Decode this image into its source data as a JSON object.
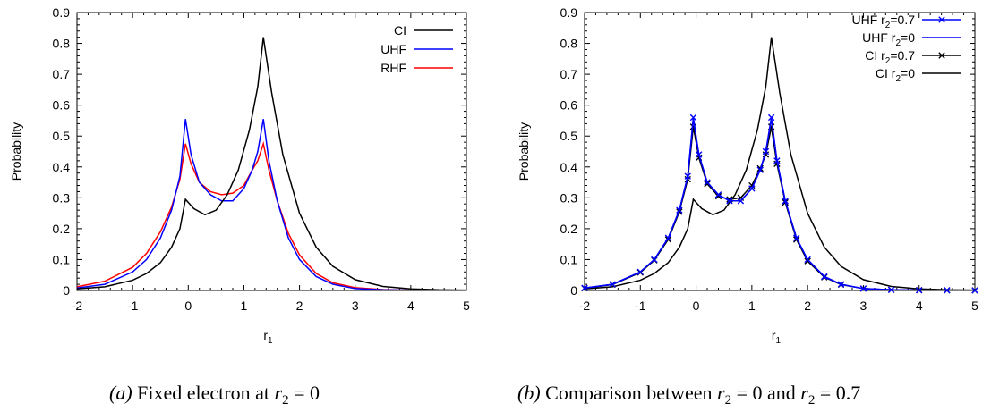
{
  "chart_data": [
    {
      "type": "line",
      "caption": {
        "tag": "(a)",
        "text": "Fixed electron at",
        "math": "r",
        "sub": "2",
        "eq": " = 0"
      },
      "ylabel": "Probability",
      "xlabel_base": "r",
      "xlabel_sub": "1",
      "xlim": [
        -2,
        5
      ],
      "ylim": [
        0,
        0.9
      ],
      "x_ticks": [
        "-2",
        "-1",
        "0",
        "1",
        "2",
        "3",
        "4",
        "5"
      ],
      "y_ticks": [
        "0",
        "0.1",
        "0.2",
        "0.3",
        "0.4",
        "0.5",
        "0.6",
        "0.7",
        "0.8",
        "0.9"
      ],
      "legend_position": "top-right",
      "series": [
        {
          "name": "CI",
          "color": "#000000",
          "marker": "none",
          "x": [
            -2,
            -1.5,
            -1,
            -0.75,
            -0.5,
            -0.3,
            -0.15,
            -0.05,
            0.1,
            0.3,
            0.5,
            0.7,
            0.9,
            1.1,
            1.25,
            1.35,
            1.5,
            1.7,
            2.0,
            2.3,
            2.6,
            3.0,
            3.5,
            4.0,
            4.5,
            5.0
          ],
          "y": [
            0.005,
            0.012,
            0.033,
            0.055,
            0.09,
            0.14,
            0.2,
            0.295,
            0.265,
            0.245,
            0.26,
            0.31,
            0.39,
            0.52,
            0.66,
            0.82,
            0.64,
            0.44,
            0.25,
            0.14,
            0.078,
            0.035,
            0.013,
            0.005,
            0.002,
            0.001
          ]
        },
        {
          "name": "UHF",
          "color": "#0000ff",
          "marker": "none",
          "x": [
            -2,
            -1.5,
            -1,
            -0.75,
            -0.5,
            -0.3,
            -0.15,
            -0.05,
            0.05,
            0.2,
            0.4,
            0.6,
            0.8,
            1.0,
            1.15,
            1.25,
            1.35,
            1.45,
            1.6,
            1.8,
            2.0,
            2.3,
            2.6,
            3.0,
            3.5,
            4.0,
            4.5,
            5.0
          ],
          "y": [
            0.008,
            0.02,
            0.06,
            0.1,
            0.17,
            0.26,
            0.37,
            0.555,
            0.44,
            0.35,
            0.31,
            0.29,
            0.29,
            0.33,
            0.39,
            0.45,
            0.555,
            0.42,
            0.29,
            0.17,
            0.1,
            0.045,
            0.02,
            0.006,
            0.002,
            0.001,
            0.0005,
            0.0002
          ]
        },
        {
          "name": "RHF",
          "color": "#ff0000",
          "marker": "none",
          "x": [
            -2,
            -1.5,
            -1,
            -0.75,
            -0.5,
            -0.3,
            -0.15,
            -0.05,
            0.05,
            0.2,
            0.4,
            0.6,
            0.8,
            1.0,
            1.15,
            1.25,
            1.35,
            1.45,
            1.6,
            1.8,
            2.0,
            2.3,
            2.6,
            3.0,
            3.5,
            4.0,
            4.5,
            5.0
          ],
          "y": [
            0.012,
            0.03,
            0.075,
            0.12,
            0.19,
            0.27,
            0.36,
            0.475,
            0.41,
            0.35,
            0.32,
            0.31,
            0.315,
            0.34,
            0.39,
            0.42,
            0.475,
            0.39,
            0.29,
            0.185,
            0.115,
            0.055,
            0.025,
            0.009,
            0.003,
            0.001,
            0.0004,
            0.0002
          ]
        }
      ]
    },
    {
      "type": "line",
      "caption": {
        "tag": "(b)",
        "text": "Comparison between",
        "math": "r",
        "sub": "2",
        "eq": " = 0 and ",
        "math2": "r",
        "sub2": "2",
        "eq2": " = 0.7"
      },
      "ylabel": "Probability",
      "xlabel_base": "r",
      "xlabel_sub": "1",
      "xlim": [
        -2,
        5
      ],
      "ylim": [
        0,
        0.9
      ],
      "x_ticks": [
        "-2",
        "-1",
        "0",
        "1",
        "2",
        "3",
        "4",
        "5"
      ],
      "y_ticks": [
        "0",
        "0.1",
        "0.2",
        "0.3",
        "0.4",
        "0.5",
        "0.6",
        "0.7",
        "0.8",
        "0.9"
      ],
      "legend_position": "top-right",
      "series": [
        {
          "name": "UHF r",
          "name_sub": "2",
          "name_tail": "=0.7",
          "color": "#0000ff",
          "marker": "x",
          "x": [
            -2,
            -1.5,
            -1,
            -0.75,
            -0.5,
            -0.3,
            -0.15,
            -0.05,
            0.05,
            0.2,
            0.4,
            0.6,
            0.8,
            1.0,
            1.15,
            1.25,
            1.35,
            1.45,
            1.6,
            1.8,
            2.0,
            2.3,
            2.6,
            3.0,
            3.5,
            4.0,
            4.5,
            5.0
          ],
          "y": [
            0.008,
            0.02,
            0.06,
            0.1,
            0.17,
            0.26,
            0.37,
            0.56,
            0.44,
            0.35,
            0.31,
            0.29,
            0.29,
            0.33,
            0.39,
            0.45,
            0.56,
            0.42,
            0.29,
            0.17,
            0.1,
            0.045,
            0.02,
            0.006,
            0.002,
            0.001,
            0.0005,
            0.0002
          ]
        },
        {
          "name": "UHF r",
          "name_sub": "2",
          "name_tail": "=0",
          "color": "#0000ff",
          "marker": "none",
          "x": [
            -2,
            -1.5,
            -1,
            -0.75,
            -0.5,
            -0.3,
            -0.15,
            -0.05,
            0.05,
            0.2,
            0.4,
            0.6,
            0.8,
            1.0,
            1.15,
            1.25,
            1.35,
            1.45,
            1.6,
            1.8,
            2.0,
            2.3,
            2.6,
            3.0,
            3.5,
            4.0,
            4.5,
            5.0
          ],
          "y": [
            0.008,
            0.02,
            0.06,
            0.1,
            0.17,
            0.26,
            0.37,
            0.555,
            0.44,
            0.35,
            0.31,
            0.29,
            0.29,
            0.33,
            0.39,
            0.45,
            0.555,
            0.42,
            0.29,
            0.17,
            0.1,
            0.045,
            0.02,
            0.006,
            0.002,
            0.001,
            0.0005,
            0.0002
          ]
        },
        {
          "name": "CI r",
          "name_sub": "2",
          "name_tail": "=0.7",
          "color": "#000000",
          "marker": "x",
          "x": [
            -2,
            -1.5,
            -1,
            -0.75,
            -0.5,
            -0.3,
            -0.15,
            -0.05,
            0.05,
            0.2,
            0.4,
            0.6,
            0.8,
            1.0,
            1.15,
            1.25,
            1.35,
            1.45,
            1.6,
            1.8,
            2.0,
            2.3,
            2.6,
            3.0,
            3.5,
            4.0,
            4.5,
            5.0
          ],
          "y": [
            0.007,
            0.019,
            0.058,
            0.098,
            0.165,
            0.255,
            0.36,
            0.53,
            0.43,
            0.345,
            0.305,
            0.295,
            0.3,
            0.34,
            0.395,
            0.44,
            0.53,
            0.41,
            0.285,
            0.165,
            0.095,
            0.043,
            0.019,
            0.006,
            0.002,
            0.001,
            0.0005,
            0.0002
          ]
        },
        {
          "name": "CI r",
          "name_sub": "2",
          "name_tail": "=0",
          "color": "#000000",
          "marker": "none",
          "x": [
            -2,
            -1.5,
            -1,
            -0.75,
            -0.5,
            -0.3,
            -0.15,
            -0.05,
            0.1,
            0.3,
            0.5,
            0.7,
            0.9,
            1.1,
            1.25,
            1.35,
            1.5,
            1.7,
            2.0,
            2.3,
            2.6,
            3.0,
            3.5,
            4.0,
            4.5,
            5.0
          ],
          "y": [
            0.005,
            0.012,
            0.033,
            0.055,
            0.09,
            0.14,
            0.2,
            0.295,
            0.265,
            0.245,
            0.26,
            0.31,
            0.39,
            0.52,
            0.66,
            0.82,
            0.64,
            0.44,
            0.25,
            0.14,
            0.078,
            0.035,
            0.013,
            0.005,
            0.002,
            0.001
          ]
        }
      ]
    }
  ]
}
